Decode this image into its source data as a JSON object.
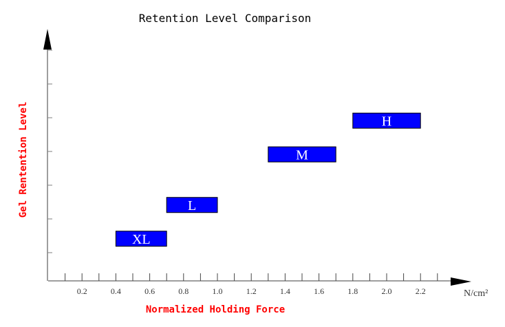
{
  "chart_data": {
    "type": "bar",
    "subtype": "floating-horizontal-range",
    "title": "Retention Level Comparison",
    "xlabel": "Normalized Holding Force",
    "xunit": "N/cm²",
    "ylabel": "Gel Rentention Level",
    "xlim": [
      0,
      2.3
    ],
    "ylim": [
      0,
      7
    ],
    "x_ticks": [
      0.2,
      0.4,
      0.6,
      0.8,
      1.0,
      1.2,
      1.4,
      1.6,
      1.8,
      2.0,
      2.2
    ],
    "x_tick_labels": [
      "0.2",
      "0.4",
      "0.6",
      "0.8",
      "1.0",
      "1.2",
      "1.4",
      "1.6",
      "1.8",
      "2.0",
      "2.2"
    ],
    "grid": false,
    "bars": [
      {
        "label": "XL",
        "x_start": 0.4,
        "x_end": 0.7,
        "level": 1.25
      },
      {
        "label": "L",
        "x_start": 0.7,
        "x_end": 1.0,
        "level": 2.25
      },
      {
        "label": "M",
        "x_start": 1.3,
        "x_end": 1.7,
        "level": 3.75
      },
      {
        "label": "H",
        "x_start": 1.8,
        "x_end": 2.2,
        "level": 4.75
      }
    ],
    "colors": {
      "bar": "#0000ff",
      "bar_text": "#ffffff",
      "axis_label": "#ff0000",
      "axis": "#7f7f7f"
    }
  }
}
